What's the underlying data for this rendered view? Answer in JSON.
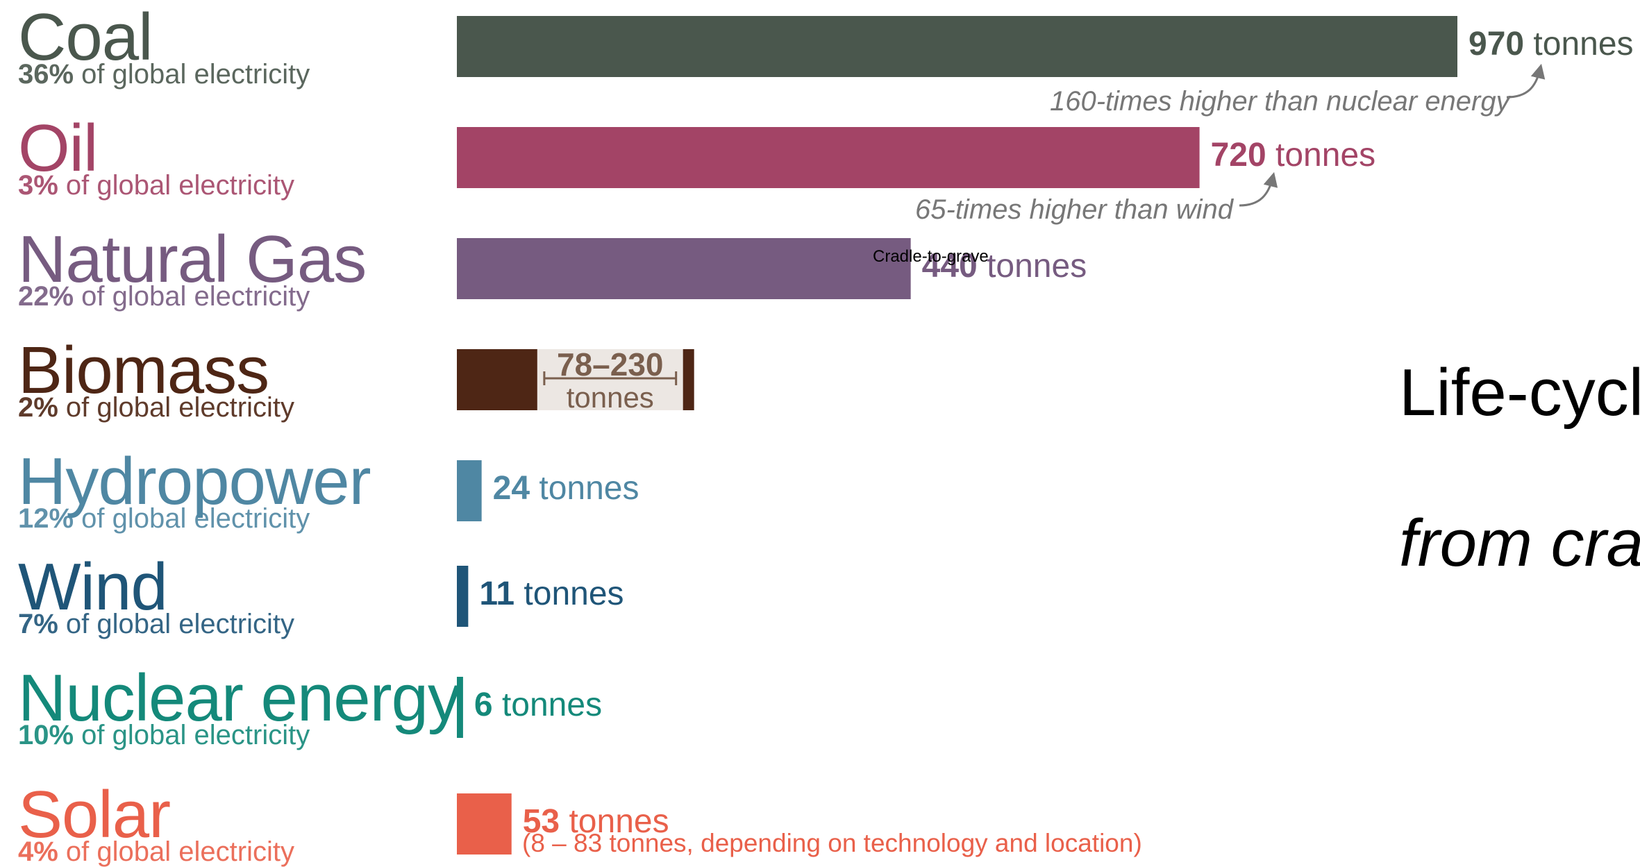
{
  "side_title": {
    "line1": "Life-cycl",
    "line2": "from cra"
  },
  "stage_label": "Cradle-to-grave",
  "unit": "tonnes",
  "share_suffix": "of global electricity",
  "notes": {
    "coal": "160-times higher than nuclear energy",
    "oil": "65-times higher than wind"
  },
  "biomass_range": {
    "label": "78–230",
    "unit": "tonnes"
  },
  "solar_detail": "(8 – 83 tonnes, depending on technology and location)",
  "sources": [
    {
      "key": "coal",
      "name": "Coal",
      "share": "36%",
      "value_label": "970",
      "color": "#4a574d"
    },
    {
      "key": "oil",
      "name": "Oil",
      "share": "3%",
      "value_label": "720",
      "color": "#a34466"
    },
    {
      "key": "gas",
      "name": "Natural Gas",
      "share": "22%",
      "value_label": "440",
      "color": "#765b80"
    },
    {
      "key": "biomass",
      "name": "Biomass",
      "share": "2%",
      "value_label": "78–230",
      "color": "#4e2615"
    },
    {
      "key": "hydro",
      "name": "Hydropower",
      "share": "12%",
      "value_label": "24",
      "color": "#4f87a3"
    },
    {
      "key": "wind",
      "name": "Wind",
      "share": "7%",
      "value_label": "11",
      "color": "#1f5578"
    },
    {
      "key": "nuclear",
      "name": "Nuclear energy",
      "share": "10%",
      "value_label": "6",
      "color": "#14897a"
    },
    {
      "key": "solar",
      "name": "Solar",
      "share": "4%",
      "value_label": "53",
      "color": "#e9604a"
    }
  ],
  "chart_data": {
    "type": "bar",
    "orientation": "horizontal",
    "categories": [
      "Coal",
      "Oil",
      "Natural Gas",
      "Biomass",
      "Hydropower",
      "Wind",
      "Nuclear energy",
      "Solar"
    ],
    "values": [
      970,
      720,
      440,
      230,
      24,
      11,
      6,
      53
    ],
    "ranges": {
      "Biomass": [
        78,
        230
      ],
      "Solar": [
        8,
        83
      ]
    },
    "unit": "tonnes",
    "share_of_global_electricity": {
      "Coal": 36,
      "Oil": 3,
      "Natural Gas": 22,
      "Biomass": 2,
      "Hydropower": 12,
      "Wind": 7,
      "Nuclear energy": 10,
      "Solar": 4
    },
    "colors": [
      "#4a574d",
      "#a34466",
      "#765b80",
      "#4e2615",
      "#4f87a3",
      "#1f5578",
      "#14897a",
      "#e9604a"
    ],
    "title": "",
    "xlabel": "",
    "ylabel": "",
    "grid": false,
    "legend": "none"
  }
}
